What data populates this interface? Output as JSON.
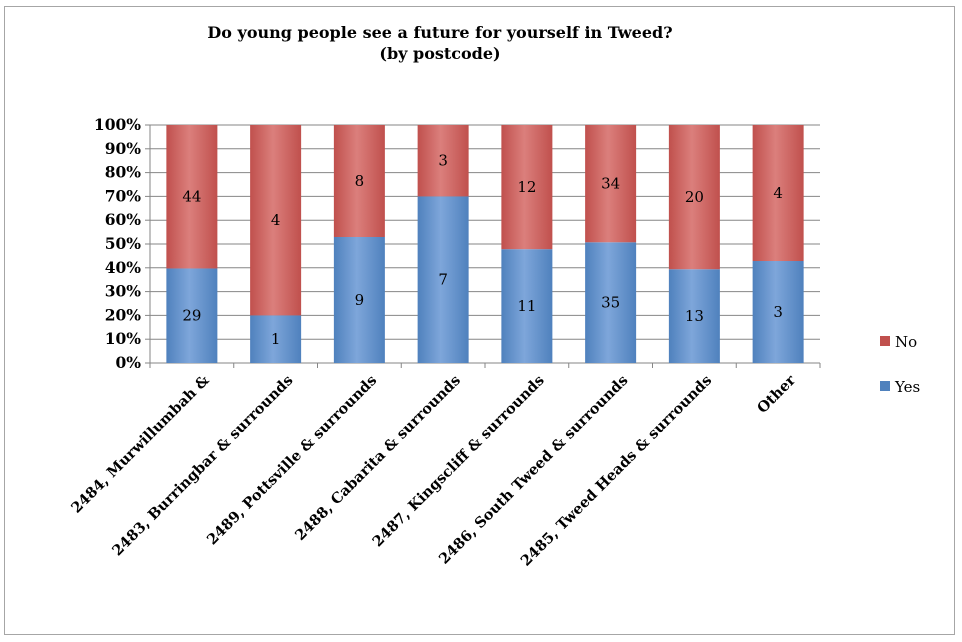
{
  "chart_data": {
    "type": "bar",
    "stacked": "percent",
    "title": "Do young people see a future for yourself in Tweed?",
    "subtitle": "(by postcode)",
    "categories": [
      "2484, Murwillumbah &",
      "2483, Burringbar & surrounds",
      "2489, Pottsville & surrounds",
      "2488, Cabarita & surrounds",
      "2487, Kingscliff & surrounds",
      "2486, South Tweed & surrounds",
      "2485, Tweed Heads & surrounds",
      "Other"
    ],
    "series": [
      {
        "name": "Yes",
        "color": "#4f81bd",
        "values": [
          29,
          1,
          9,
          7,
          11,
          35,
          13,
          3
        ]
      },
      {
        "name": "No",
        "color": "#c0504d",
        "values": [
          44,
          4,
          8,
          3,
          12,
          34,
          20,
          4
        ]
      }
    ],
    "y_ticks": [
      "0%",
      "10%",
      "20%",
      "30%",
      "40%",
      "50%",
      "60%",
      "70%",
      "80%",
      "90%",
      "100%"
    ],
    "ylim": [
      0,
      100
    ],
    "grid": true,
    "legend": "right"
  }
}
